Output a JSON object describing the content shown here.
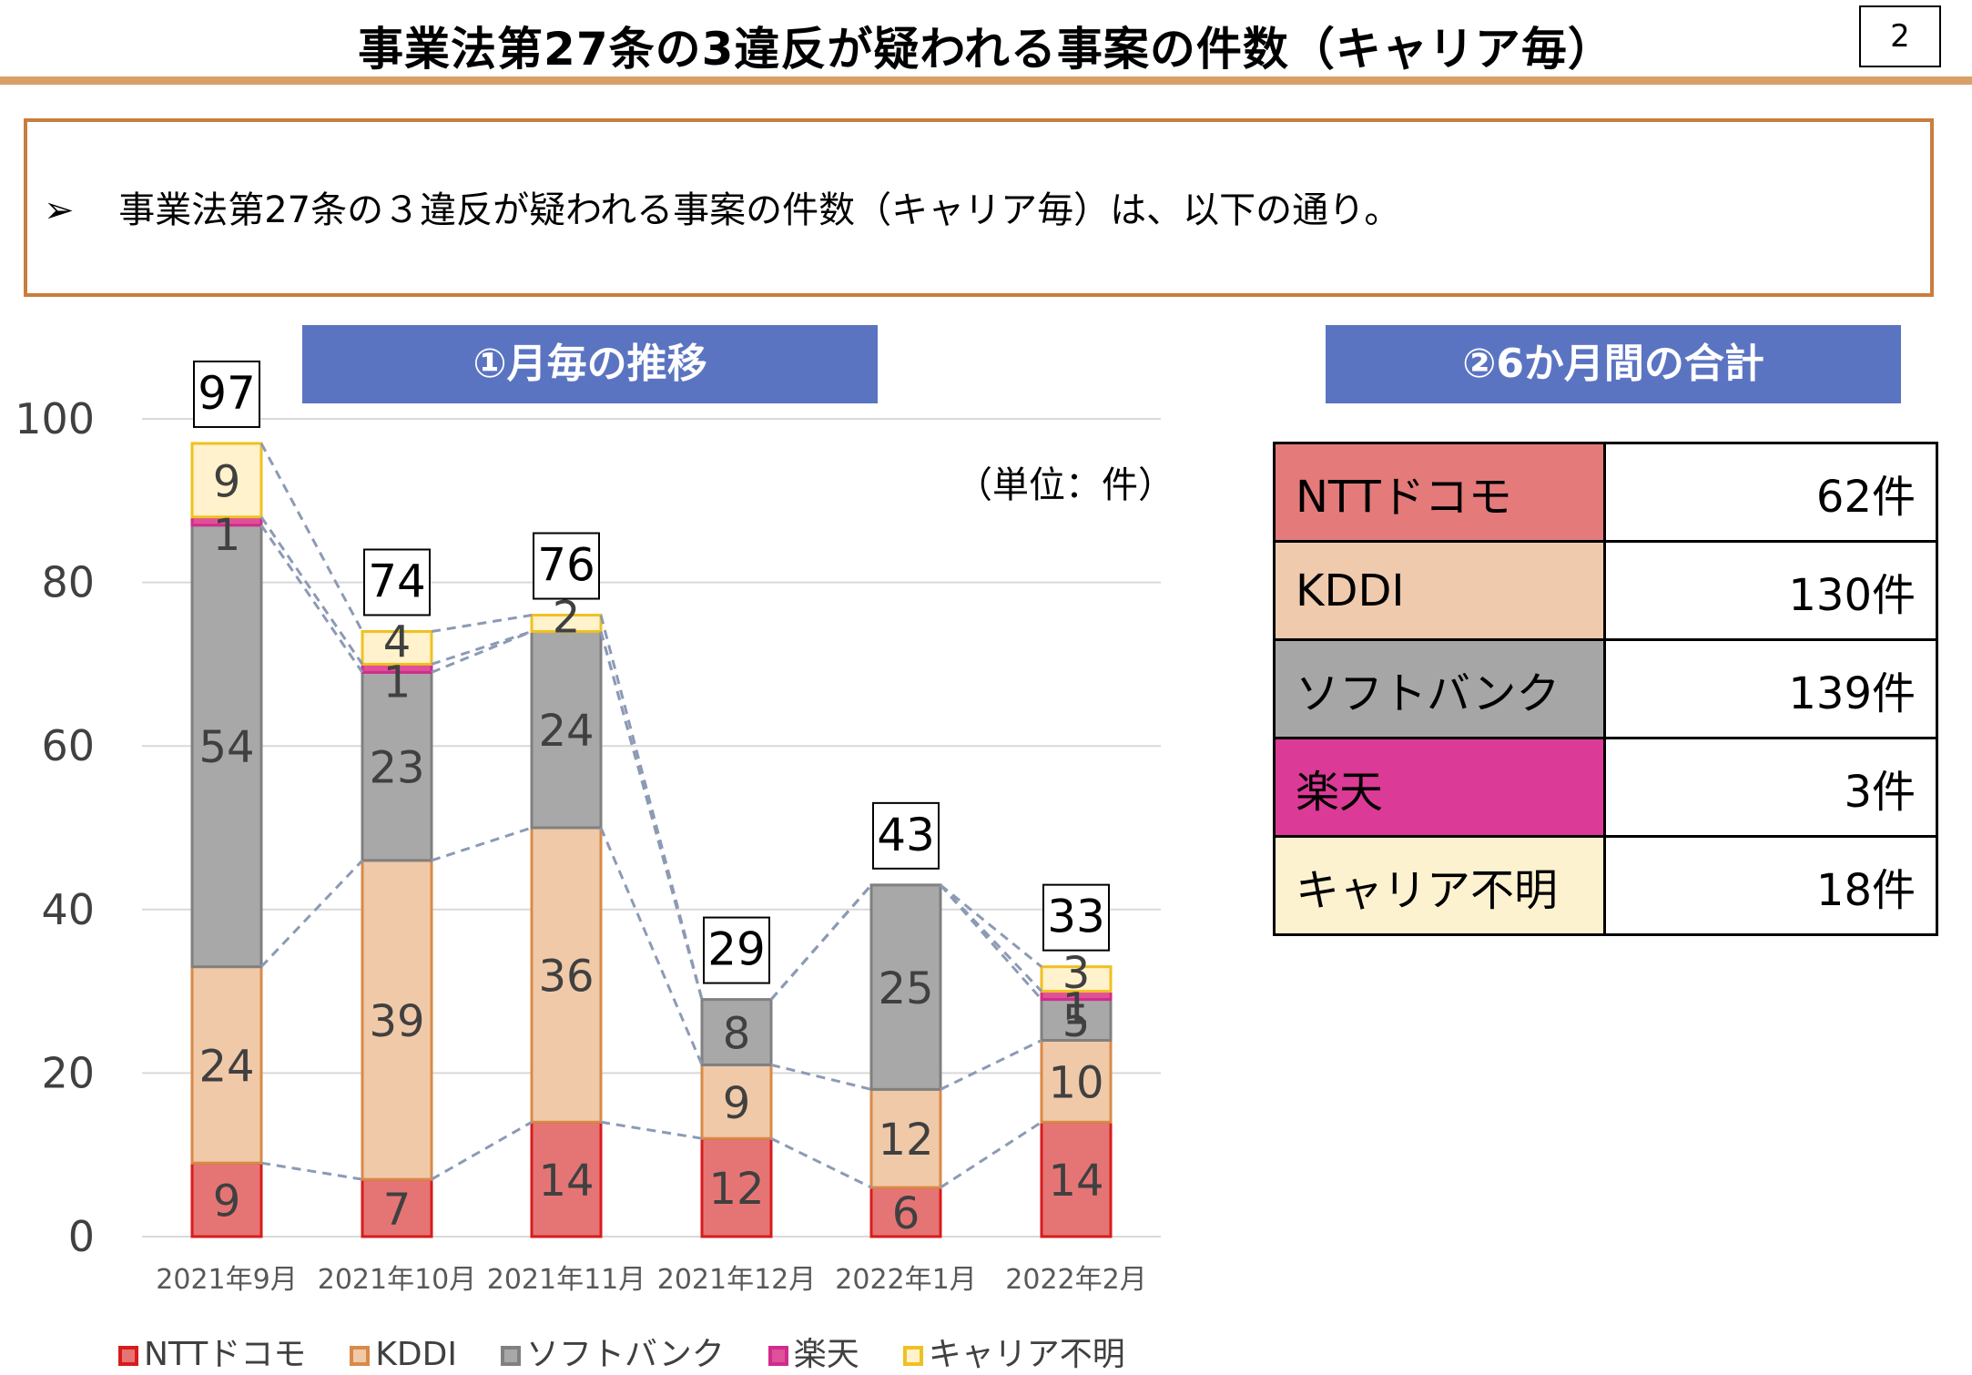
{
  "header": {
    "title": "事業法第27条の3違反が疑われる事案の件数（キャリア毎）",
    "page_number": "2"
  },
  "summary": {
    "bullet": "➢",
    "text": "事業法第27条の３違反が疑われる事案の件数（キャリア毎）は、以下の通り。"
  },
  "sections": {
    "monthly": "①月毎の推移",
    "total": "②6か月間の合計"
  },
  "unit_label": "（単位：件）",
  "colors": {
    "title_rule": "#d8a068",
    "box_border": "#c97d3e",
    "section_header": "#5b74c2"
  },
  "chart_data": {
    "type": "bar",
    "stacked": true,
    "categories": [
      "2021年9月",
      "2021年10月",
      "2021年11月",
      "2021年12月",
      "2022年1月",
      "2022年2月"
    ],
    "series": [
      {
        "name": "NTTドコモ",
        "values": [
          9,
          7,
          14,
          12,
          6,
          14
        ],
        "fill": "#e57575",
        "stroke": "#d81c1c"
      },
      {
        "name": "KDDI",
        "values": [
          24,
          39,
          36,
          9,
          12,
          10
        ],
        "fill": "#f0c9a8",
        "stroke": "#d98a48"
      },
      {
        "name": "ソフトバンク",
        "values": [
          54,
          23,
          24,
          8,
          25,
          5
        ],
        "fill": "#a8a8a8",
        "stroke": "#808080"
      },
      {
        "name": "楽天",
        "values": [
          1,
          1,
          0,
          0,
          0,
          1
        ],
        "fill": "#e0509a",
        "stroke": "#d02c8c"
      },
      {
        "name": "キャリア不明",
        "values": [
          9,
          4,
          2,
          0,
          0,
          3
        ],
        "fill": "#fff2cc",
        "stroke": "#f0c020"
      }
    ],
    "totals": [
      97,
      74,
      76,
      29,
      43,
      33
    ],
    "ylim": [
      0,
      100
    ],
    "yticks": [
      0,
      20,
      40,
      60,
      80,
      100
    ],
    "grid": true,
    "legend": "bottom"
  },
  "totals_table": [
    {
      "carrier": "NTTドコモ",
      "count": "62件",
      "color": "#e47a7a"
    },
    {
      "carrier": "KDDI",
      "count": "130件",
      "color": "#efcaad"
    },
    {
      "carrier": "ソフトバンク",
      "count": "139件",
      "color": "#a6a6a6"
    },
    {
      "carrier": "楽天",
      "count": "3件",
      "color": "#db3a96"
    },
    {
      "carrier": "キャリア不明",
      "count": "18件",
      "color": "#fdf2d0"
    }
  ]
}
